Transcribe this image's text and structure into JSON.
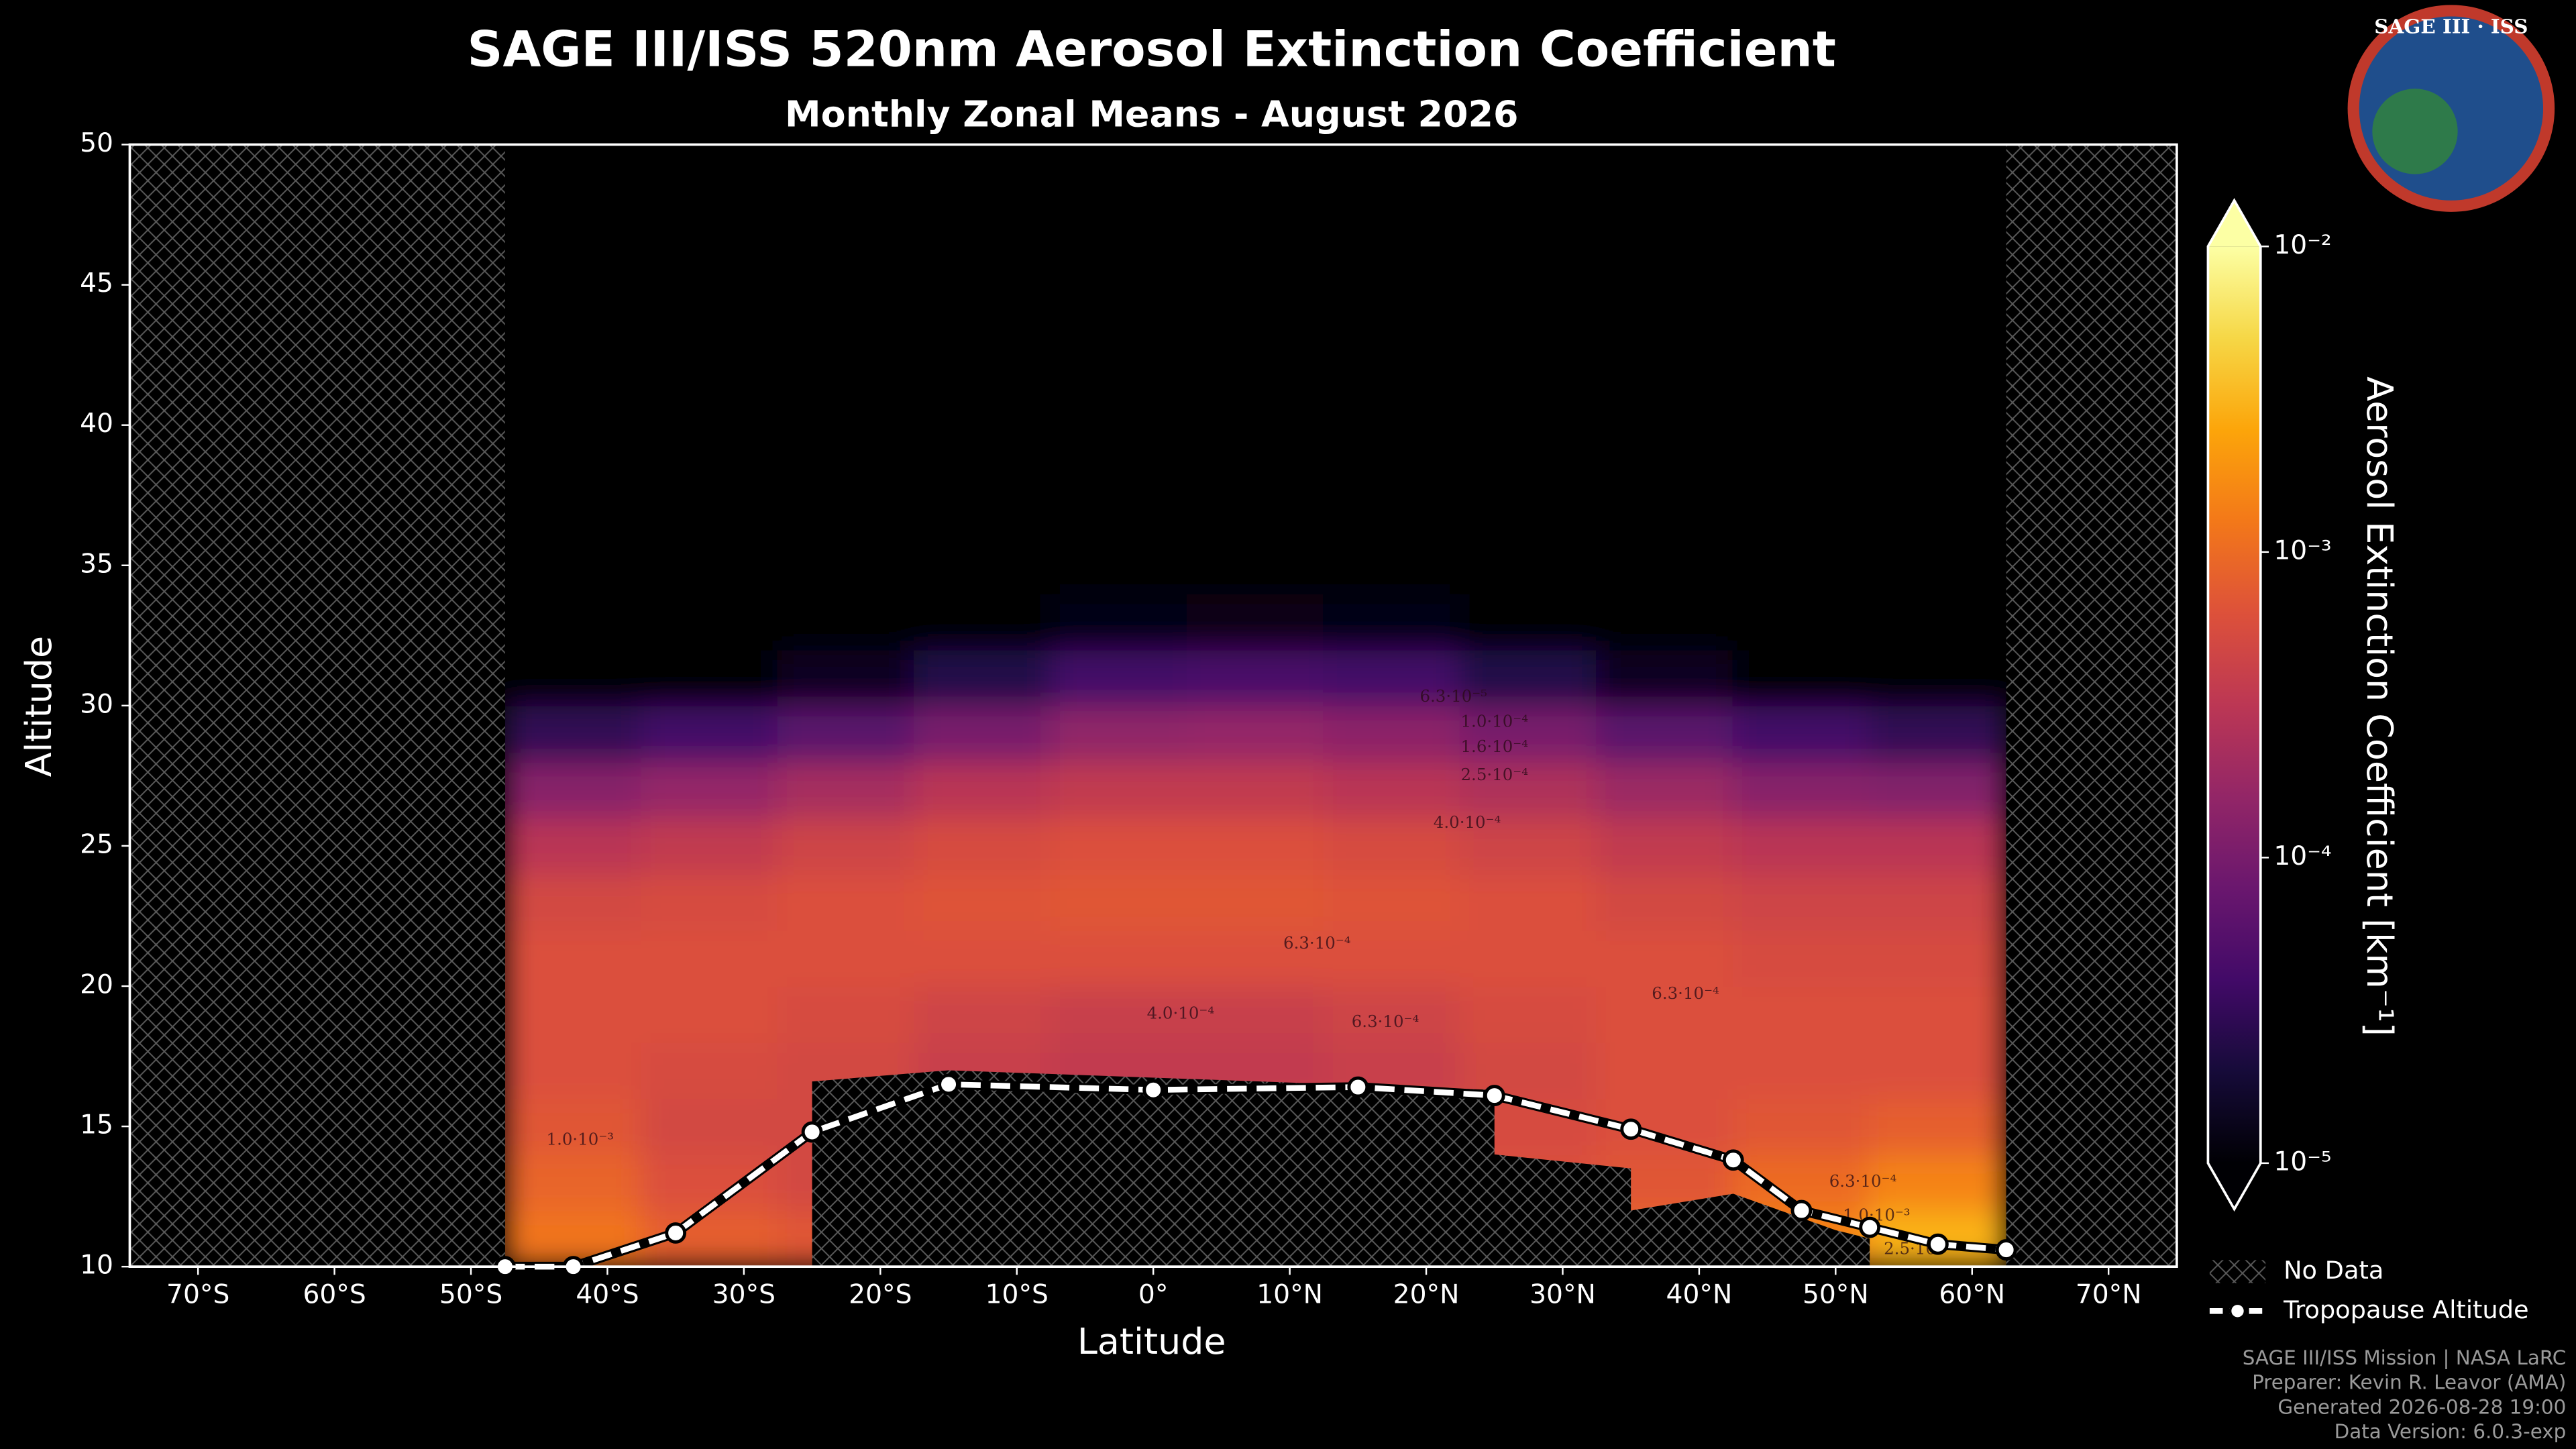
{
  "chart_data": {
    "type": "heatmap",
    "title": "SAGE III/ISS 520nm Aerosol Extinction Coefficient",
    "subtitle": "Monthly Zonal Means - August 2026",
    "x_label": "Latitude",
    "y_label": "Altitude",
    "colorbar_label": "Aerosol Extinction Coefficient [km⁻¹]",
    "colormap": "inferno",
    "log_color": true,
    "clim": [
      1e-05,
      0.01
    ],
    "cticks": [
      {
        "value": 1e-05,
        "label": "10⁻⁵"
      },
      {
        "value": 0.0001,
        "label": "10⁻⁴"
      },
      {
        "value": 0.001,
        "label": "10⁻³"
      },
      {
        "value": 0.01,
        "label": "10⁻²"
      }
    ],
    "xlim": [
      -75,
      75
    ],
    "ylim": [
      10,
      50
    ],
    "xticks": [
      {
        "value": -70,
        "label": "70°S"
      },
      {
        "value": -60,
        "label": "60°S"
      },
      {
        "value": -50,
        "label": "50°S"
      },
      {
        "value": -40,
        "label": "40°S"
      },
      {
        "value": -30,
        "label": "30°S"
      },
      {
        "value": -20,
        "label": "20°S"
      },
      {
        "value": -10,
        "label": "10°S"
      },
      {
        "value": 0,
        "label": "0°"
      },
      {
        "value": 10,
        "label": "10°N"
      },
      {
        "value": 20,
        "label": "20°N"
      },
      {
        "value": 30,
        "label": "30°N"
      },
      {
        "value": 40,
        "label": "40°N"
      },
      {
        "value": 50,
        "label": "50°N"
      },
      {
        "value": 60,
        "label": "60°N"
      },
      {
        "value": 70,
        "label": "70°N"
      }
    ],
    "yticks": [
      10,
      15,
      20,
      25,
      30,
      35,
      40,
      45,
      50
    ],
    "heatmap": {
      "x_bins": [
        -47.5,
        -37.5,
        -27.5,
        -17.5,
        -7.5,
        2.5,
        12.5,
        22.5,
        32.5,
        42.5,
        52.5,
        62.5
      ],
      "y_bins": [
        10,
        12,
        14,
        16,
        18,
        20,
        22,
        24,
        26,
        28,
        30,
        32,
        34,
        50
      ],
      "values": [
        [
          0.0012,
          0.0008,
          0.0007,
          0.0007,
          0.0007,
          0.0007,
          0.0007,
          0.0008,
          0.0009,
          0.0015,
          0.003
        ],
        [
          0.0009,
          0.0006,
          0.0005,
          0.0005,
          0.0005,
          0.0005,
          0.0005,
          0.0006,
          0.0007,
          0.001,
          0.0015
        ],
        [
          0.0007,
          0.0005,
          0.0005,
          0.0005,
          0.0005,
          0.0005,
          0.0005,
          0.00055,
          0.0006,
          0.0007,
          0.0008
        ],
        [
          0.0006,
          0.00055,
          0.0005,
          0.0004,
          0.00035,
          0.00035,
          0.0004,
          0.0005,
          0.0006,
          0.0006,
          0.0006
        ],
        [
          0.0006,
          0.0006,
          0.00055,
          0.00045,
          0.0004,
          0.0004,
          0.00045,
          0.00055,
          0.0006,
          0.0006,
          0.0006
        ],
        [
          0.0006,
          0.0006,
          0.0006,
          0.0006,
          0.0006,
          0.0006,
          0.0006,
          0.0006,
          0.0006,
          0.00055,
          0.00055
        ],
        [
          0.0005,
          0.00055,
          0.0006,
          0.00065,
          0.0007,
          0.0007,
          0.00065,
          0.0006,
          0.0005,
          0.00045,
          0.00045
        ],
        [
          0.0003,
          0.00035,
          0.00045,
          0.00055,
          0.0006,
          0.0006,
          0.00055,
          0.00045,
          0.00035,
          0.0003,
          0.0003
        ],
        [
          0.00013,
          0.00016,
          0.00022,
          0.0003,
          0.00035,
          0.00035,
          0.0003,
          0.00025,
          0.00018,
          0.00013,
          0.00012
        ],
        [
          3e-05,
          4e-05,
          6e-05,
          0.0001,
          0.00015,
          0.00016,
          0.00014,
          0.0001,
          6e-05,
          4e-05,
          3e-05
        ],
        [
          1e-05,
          1e-05,
          1.5e-05,
          2.5e-05,
          4e-05,
          4.5e-05,
          4e-05,
          2.5e-05,
          1.5e-05,
          1e-05,
          1e-05
        ],
        [
          1e-05,
          1e-05,
          1e-05,
          1e-05,
          1.2e-05,
          1.3e-05,
          1.2e-05,
          1e-05,
          1e-05,
          1e-05,
          1e-05
        ],
        [
          1e-05,
          1e-05,
          1e-05,
          1e-05,
          1e-05,
          1e-05,
          1e-05,
          1e-05,
          1e-05,
          1e-05,
          1e-05
        ]
      ]
    },
    "contours": [
      {
        "value": 0.001,
        "label": "1.0·10⁻³",
        "x": -42,
        "y": 14.5
      },
      {
        "value": 0.00063,
        "label": "6.3·10⁻⁴",
        "x": 12,
        "y": 21.5
      },
      {
        "value": 0.0004,
        "label": "4.0·10⁻⁴",
        "x": 2,
        "y": 19
      },
      {
        "value": 0.00063,
        "label": "6.3·10⁻⁴",
        "x": 17,
        "y": 18.7
      },
      {
        "value": 0.00063,
        "label": "6.3·10⁻⁴",
        "x": 39,
        "y": 19.7
      },
      {
        "value": 0.0004,
        "label": "4.0·10⁻⁴",
        "x": 23,
        "y": 25.8
      },
      {
        "value": 0.00025,
        "label": "2.5·10⁻⁴",
        "x": 25,
        "y": 27.5
      },
      {
        "value": 0.00016,
        "label": "1.6·10⁻⁴",
        "x": 25,
        "y": 28.5
      },
      {
        "value": 0.0001,
        "label": "1.0·10⁻⁴",
        "x": 25,
        "y": 29.4
      },
      {
        "value": 6.3e-05,
        "label": "6.3·10⁻⁵",
        "x": 22,
        "y": 30.3
      },
      {
        "value": 0.00063,
        "label": "6.3·10⁻⁴",
        "x": 52,
        "y": 13
      },
      {
        "value": 0.001,
        "label": "1.0·10⁻³",
        "x": 53,
        "y": 11.8
      },
      {
        "value": 0.0025,
        "label": "2.5·10⁻³",
        "x": 56,
        "y": 10.6
      }
    ],
    "no_data": {
      "name": "No Data",
      "lat_ranges": [
        [
          -75,
          -47.5
        ],
        [
          62.5,
          75
        ]
      ],
      "floor": {
        "x": [
          -25,
          -25,
          -15,
          25,
          25,
          35,
          35,
          42.5,
          50,
          52.5,
          52.5
        ],
        "y": [
          10,
          16.6,
          17,
          16.3,
          14,
          13.5,
          12,
          12.6,
          11.3,
          11,
          10
        ]
      }
    },
    "series": [
      {
        "name": "Tropopause Altitude",
        "color": "#ffffff",
        "x": [
          -47.5,
          -42.5,
          -35,
          -25,
          -15,
          0,
          15,
          25,
          35,
          42.5,
          47.5,
          52.5,
          57.5,
          62.5
        ],
        "values": [
          10,
          10,
          11.2,
          14.8,
          16.5,
          16.3,
          16.4,
          16.1,
          14.9,
          13.8,
          12,
          11.4,
          10.8,
          10.6
        ]
      }
    ]
  },
  "logo": {
    "title": "SAGE III · ISS"
  },
  "footer": [
    "SAGE III/ISS Mission | NASA LaRC",
    "Preparer: Kevin R. Leavor (AMA)",
    "Generated 2026-08-28 19:00",
    "Data Version: 6.0.3-exp"
  ]
}
